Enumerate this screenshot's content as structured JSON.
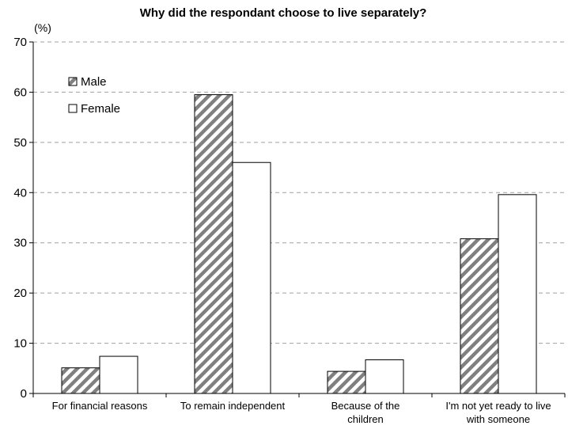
{
  "chart_data": {
    "type": "bar",
    "title": "Why did the respondant choose to live separately?",
    "ylabel": "(%)",
    "xlabel": "",
    "ylim": [
      0,
      70
    ],
    "yticks": [
      0,
      10,
      20,
      30,
      40,
      50,
      60,
      70
    ],
    "grid": "horizontal dashed",
    "legend_position": "top-left",
    "categories": [
      [
        "For financial reasons"
      ],
      [
        "To remain independent"
      ],
      [
        "Because of the",
        "children"
      ],
      [
        "I'm not yet ready to live",
        "with someone"
      ]
    ],
    "series": [
      {
        "name": "Male",
        "pattern": "diagonal-hatch",
        "color": "#808080",
        "values": [
          5.1,
          59.5,
          4.4,
          30.8
        ]
      },
      {
        "name": "Female",
        "pattern": "solid",
        "color": "#ffffff",
        "values": [
          7.4,
          46.0,
          6.7,
          39.6
        ]
      }
    ]
  }
}
